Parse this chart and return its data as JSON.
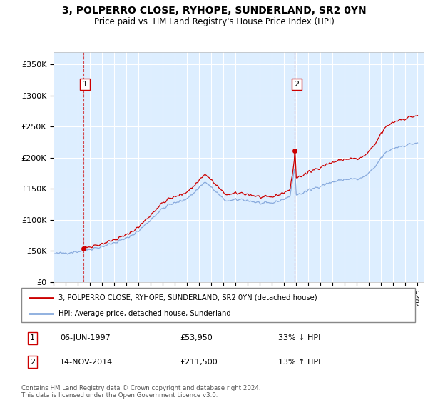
{
  "title": "3, POLPERRO CLOSE, RYHOPE, SUNDERLAND, SR2 0YN",
  "subtitle": "Price paid vs. HM Land Registry's House Price Index (HPI)",
  "xlim": [
    1995.0,
    2025.5
  ],
  "ylim": [
    0,
    370000
  ],
  "yticks": [
    0,
    50000,
    100000,
    150000,
    200000,
    250000,
    300000,
    350000
  ],
  "ytick_labels": [
    "£0",
    "£50K",
    "£100K",
    "£150K",
    "£200K",
    "£250K",
    "£300K",
    "£350K"
  ],
  "xticks": [
    1995,
    1996,
    1997,
    1998,
    1999,
    2000,
    2001,
    2002,
    2003,
    2004,
    2005,
    2006,
    2007,
    2008,
    2009,
    2010,
    2011,
    2012,
    2013,
    2014,
    2015,
    2016,
    2017,
    2018,
    2019,
    2020,
    2021,
    2022,
    2023,
    2024,
    2025
  ],
  "bg_color": "#ddeeff",
  "grid_color": "#ffffff",
  "purchase1_x": 1997.44,
  "purchase1_y": 53950,
  "purchase2_x": 2014.87,
  "purchase2_y": 211500,
  "hpi_color": "#88aadd",
  "price_color": "#cc0000",
  "vline_color": "#cc0000",
  "legend_line1": "3, POLPERRO CLOSE, RYHOPE, SUNDERLAND, SR2 0YN (detached house)",
  "legend_line2": "HPI: Average price, detached house, Sunderland",
  "table_row1": [
    "1",
    "06-JUN-1997",
    "£53,950",
    "33% ↓ HPI"
  ],
  "table_row2": [
    "2",
    "14-NOV-2014",
    "£211,500",
    "13% ↑ HPI"
  ],
  "footer": "Contains HM Land Registry data © Crown copyright and database right 2024.\nThis data is licensed under the Open Government Licence v3.0."
}
